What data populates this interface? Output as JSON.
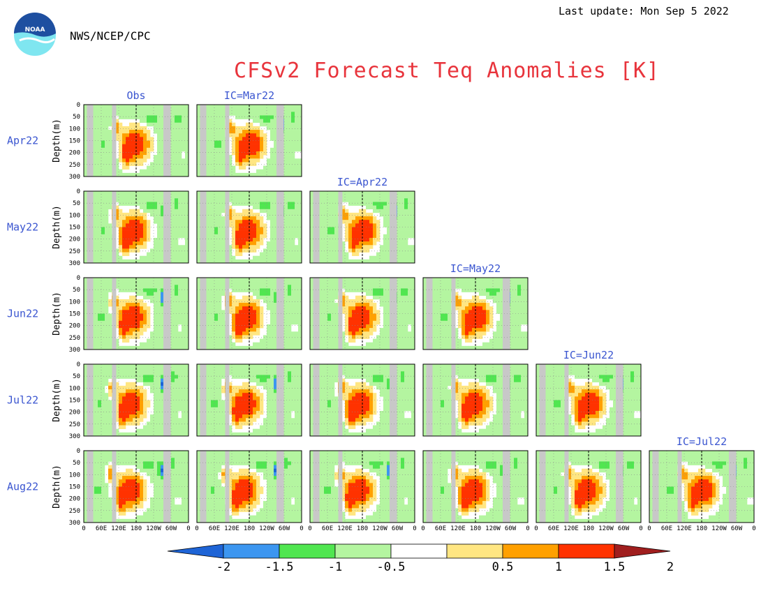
{
  "header": {
    "last_update": "Last update: Mon Sep 5 2022",
    "agency": "NWS/NCEP/CPC",
    "title": "CFSv2 Forecast Teq Anomalies [K]",
    "logo_text": "NOAA"
  },
  "chart_data": {
    "type": "heatmap",
    "title": "CFSv2 Forecast Teq Anomalies [K]",
    "ylabel": "Depth(m)",
    "y_ticks": [
      0,
      50,
      100,
      150,
      200,
      250,
      300
    ],
    "ylim": [
      300,
      0
    ],
    "x_ticks": [
      "0",
      "60E",
      "120E",
      "180",
      "120W",
      "60W",
      "0"
    ],
    "row_labels": [
      "Apr22",
      "May22",
      "Jun22",
      "Jul22",
      "Aug22"
    ],
    "column_labels": [
      "Obs",
      "IC=Mar22",
      "IC=Apr22",
      "IC=May22",
      "IC=Jun22",
      "IC=Jul22"
    ],
    "colorbar": {
      "ticks": [
        "-2",
        "-1.5",
        "-1",
        "-0.5",
        "0.5",
        "1",
        "1.5",
        "2"
      ],
      "colors": [
        "#1e64d6",
        "#3c96f0",
        "#50e650",
        "#b4f5a0",
        "#ffffff",
        "#ffe682",
        "#ffa000",
        "#ff3200",
        "#a01e1e"
      ]
    }
  }
}
